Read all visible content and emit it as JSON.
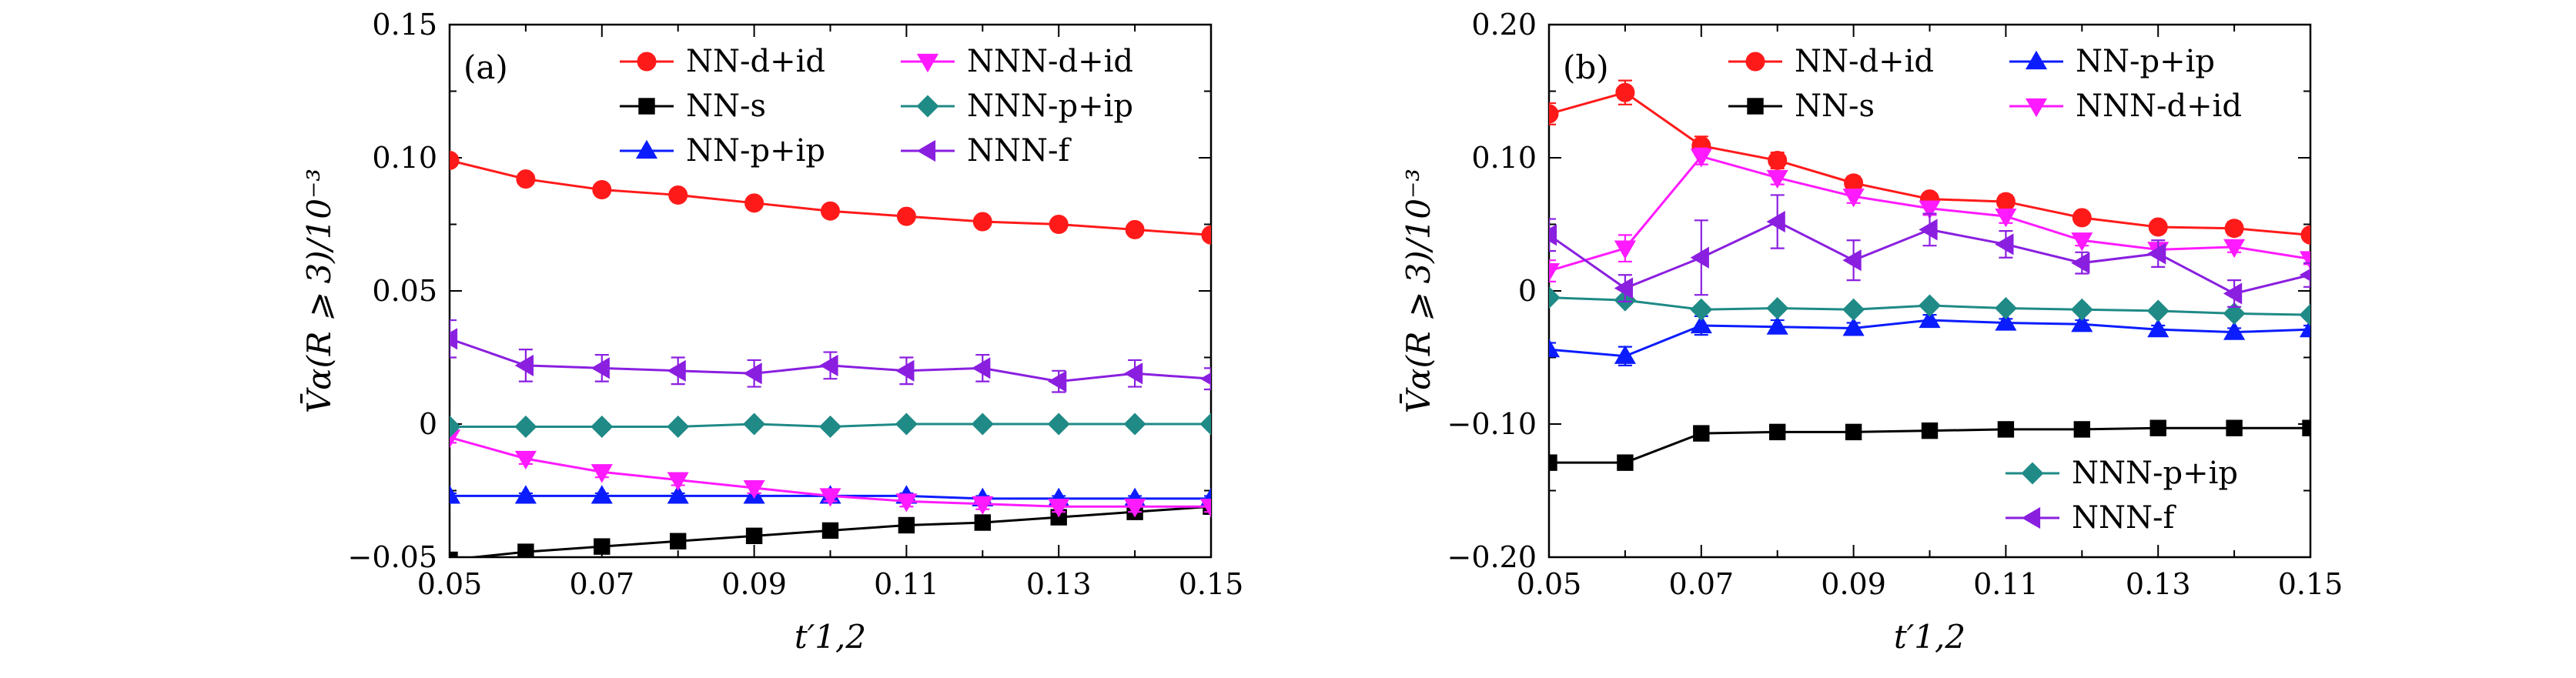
{
  "figure": {
    "panel_a_label": "(a)",
    "panel_b_label": "(b)",
    "ylabel": "V̄α(R ⩾ 3)/10⁻³",
    "xlabel": "t′1,2"
  },
  "colors": {
    "NN-d+id": "#ff1a1a",
    "NN-s": "#000000",
    "NN-p+ip": "#0b1cff",
    "NNN-d+id": "#ff1aff",
    "NNN-p+ip": "#1f8a86",
    "NNN-f": "#8a1fe0"
  },
  "chart_data": [
    {
      "panel": "(a)",
      "type": "line",
      "title": "",
      "xlabel": "t′1,2",
      "ylabel": "V̄α(R ⩾ 3)/10⁻³",
      "xlim": [
        0.05,
        0.15
      ],
      "ylim": [
        -0.05,
        0.15
      ],
      "xticks": [
        0.05,
        0.07,
        0.09,
        0.11,
        0.13,
        0.15
      ],
      "xtick_labels": [
        "0.05",
        "0.07",
        "0.09",
        "0.11",
        "0.13",
        "0.15"
      ],
      "yticks": [
        -0.05,
        0,
        0.05,
        0.1,
        0.15
      ],
      "ytick_labels": [
        "−0.05",
        "0",
        "0.05",
        "0.10",
        "0.15"
      ],
      "x": [
        0.05,
        0.06,
        0.07,
        0.08,
        0.09,
        0.1,
        0.11,
        0.12,
        0.13,
        0.14,
        0.15
      ],
      "legend_placement": "top-right, two columns",
      "series": [
        {
          "name": "NN-d+id",
          "marker": "circle",
          "values": [
            0.099,
            0.092,
            0.088,
            0.086,
            0.083,
            0.08,
            0.078,
            0.076,
            0.075,
            0.073,
            0.071
          ],
          "errors": [
            0.002,
            0.002,
            0.002,
            0.002,
            0.002,
            0.002,
            0.002,
            0.002,
            0.002,
            0.002,
            0.002
          ]
        },
        {
          "name": "NN-s",
          "marker": "square",
          "values": [
            -0.051,
            -0.048,
            -0.046,
            -0.044,
            -0.042,
            -0.04,
            -0.038,
            -0.037,
            -0.035,
            -0.033,
            -0.031
          ],
          "errors": [
            0.001,
            0.001,
            0.001,
            0.001,
            0.001,
            0.001,
            0.001,
            0.001,
            0.001,
            0.001,
            0.001
          ]
        },
        {
          "name": "NN-p+ip",
          "marker": "triangle-up",
          "values": [
            -0.027,
            -0.027,
            -0.027,
            -0.027,
            -0.027,
            -0.027,
            -0.027,
            -0.028,
            -0.028,
            -0.028,
            -0.028
          ],
          "errors": [
            0.001,
            0.001,
            0.001,
            0.001,
            0.001,
            0.001,
            0.001,
            0.001,
            0.001,
            0.001,
            0.001
          ]
        },
        {
          "name": "NNN-d+id",
          "marker": "triangle-down",
          "values": [
            -0.005,
            -0.013,
            -0.018,
            -0.021,
            -0.024,
            -0.027,
            -0.029,
            -0.03,
            -0.031,
            -0.031,
            -0.031
          ],
          "errors": [
            0.002,
            0.002,
            0.002,
            0.002,
            0.002,
            0.002,
            0.002,
            0.002,
            0.002,
            0.002,
            0.002
          ]
        },
        {
          "name": "NNN-p+ip",
          "marker": "diamond",
          "values": [
            -0.001,
            -0.001,
            -0.001,
            -0.001,
            0.0,
            -0.001,
            0.0,
            0.0,
            0.0,
            0.0,
            0.0
          ],
          "errors": [
            0.001,
            0.001,
            0.001,
            0.001,
            0.001,
            0.001,
            0.001,
            0.001,
            0.001,
            0.001,
            0.001
          ]
        },
        {
          "name": "NNN-f",
          "marker": "triangle-left",
          "values": [
            0.032,
            0.022,
            0.021,
            0.02,
            0.019,
            0.022,
            0.02,
            0.021,
            0.016,
            0.019,
            0.017
          ],
          "errors": [
            0.007,
            0.006,
            0.005,
            0.005,
            0.005,
            0.005,
            0.005,
            0.005,
            0.004,
            0.005,
            0.004
          ]
        }
      ],
      "legend_order": [
        "NN-d+id",
        "NNN-d+id",
        "NN-s",
        "NNN-p+ip",
        "NN-p+ip",
        "NNN-f"
      ]
    },
    {
      "panel": "(b)",
      "type": "line",
      "title": "",
      "xlabel": "t′1,2",
      "ylabel": "V̄α(R ⩾ 3)/10⁻³",
      "xlim": [
        0.05,
        0.15
      ],
      "ylim": [
        -0.2,
        0.2
      ],
      "xticks": [
        0.05,
        0.07,
        0.09,
        0.11,
        0.13,
        0.15
      ],
      "xtick_labels": [
        "0.05",
        "0.07",
        "0.09",
        "0.11",
        "0.13",
        "0.15"
      ],
      "yticks": [
        -0.2,
        -0.1,
        0,
        0.1,
        0.2
      ],
      "ytick_labels": [
        "−0.20",
        "−0.10",
        "0",
        "0.10",
        "0.20"
      ],
      "x": [
        0.05,
        0.06,
        0.07,
        0.08,
        0.09,
        0.1,
        0.11,
        0.12,
        0.13,
        0.14,
        0.15
      ],
      "legend_placement": "top-right two columns; bottom-right for NNN-p+ip and NNN-f",
      "series": [
        {
          "name": "NN-d+id",
          "marker": "circle",
          "values": [
            0.133,
            0.149,
            0.109,
            0.098,
            0.081,
            0.069,
            0.067,
            0.055,
            0.048,
            0.047,
            0.042
          ],
          "errors": [
            0.008,
            0.009,
            0.007,
            0.006,
            0.005,
            0.004,
            0.005,
            0.004,
            0.004,
            0.005,
            0.004
          ]
        },
        {
          "name": "NN-s",
          "marker": "square",
          "values": [
            -0.129,
            -0.129,
            -0.107,
            -0.106,
            -0.106,
            -0.105,
            -0.104,
            -0.104,
            -0.103,
            -0.103,
            -0.103
          ],
          "errors": [
            0.003,
            0.003,
            0.003,
            0.003,
            0.003,
            0.003,
            0.003,
            0.003,
            0.003,
            0.003,
            0.003
          ]
        },
        {
          "name": "NN-p+ip",
          "marker": "triangle-up",
          "values": [
            -0.044,
            -0.049,
            -0.026,
            -0.027,
            -0.028,
            -0.022,
            -0.024,
            -0.025,
            -0.029,
            -0.031,
            -0.029
          ],
          "errors": [
            0.005,
            0.007,
            0.007,
            0.005,
            0.004,
            0.004,
            0.003,
            0.003,
            0.003,
            0.003,
            0.003
          ]
        },
        {
          "name": "NNN-d+id",
          "marker": "triangle-down",
          "values": [
            0.015,
            0.032,
            0.101,
            0.085,
            0.071,
            0.062,
            0.056,
            0.038,
            0.031,
            0.033,
            0.024
          ],
          "errors": [
            0.008,
            0.01,
            0.006,
            0.005,
            0.005,
            0.005,
            0.005,
            0.004,
            0.004,
            0.004,
            0.004
          ]
        },
        {
          "name": "NNN-p+ip",
          "marker": "diamond",
          "values": [
            -0.005,
            -0.007,
            -0.014,
            -0.013,
            -0.014,
            -0.011,
            -0.013,
            -0.014,
            -0.015,
            -0.017,
            -0.018
          ],
          "errors": [
            0.002,
            0.002,
            0.002,
            0.002,
            0.002,
            0.002,
            0.002,
            0.002,
            0.002,
            0.002,
            0.002
          ]
        },
        {
          "name": "NNN-f",
          "marker": "triangle-left",
          "values": [
            0.042,
            0.002,
            0.025,
            0.052,
            0.023,
            0.046,
            0.035,
            0.021,
            0.028,
            -0.002,
            0.012
          ],
          "errors": [
            0.012,
            0.01,
            0.028,
            0.02,
            0.015,
            0.012,
            0.01,
            0.008,
            0.01,
            0.01,
            0.009
          ]
        }
      ],
      "legend_order": [
        "NN-d+id",
        "NN-p+ip",
        "NN-s",
        "NNN-d+id"
      ],
      "legend2_order": [
        "NNN-p+ip",
        "NNN-f"
      ]
    }
  ]
}
